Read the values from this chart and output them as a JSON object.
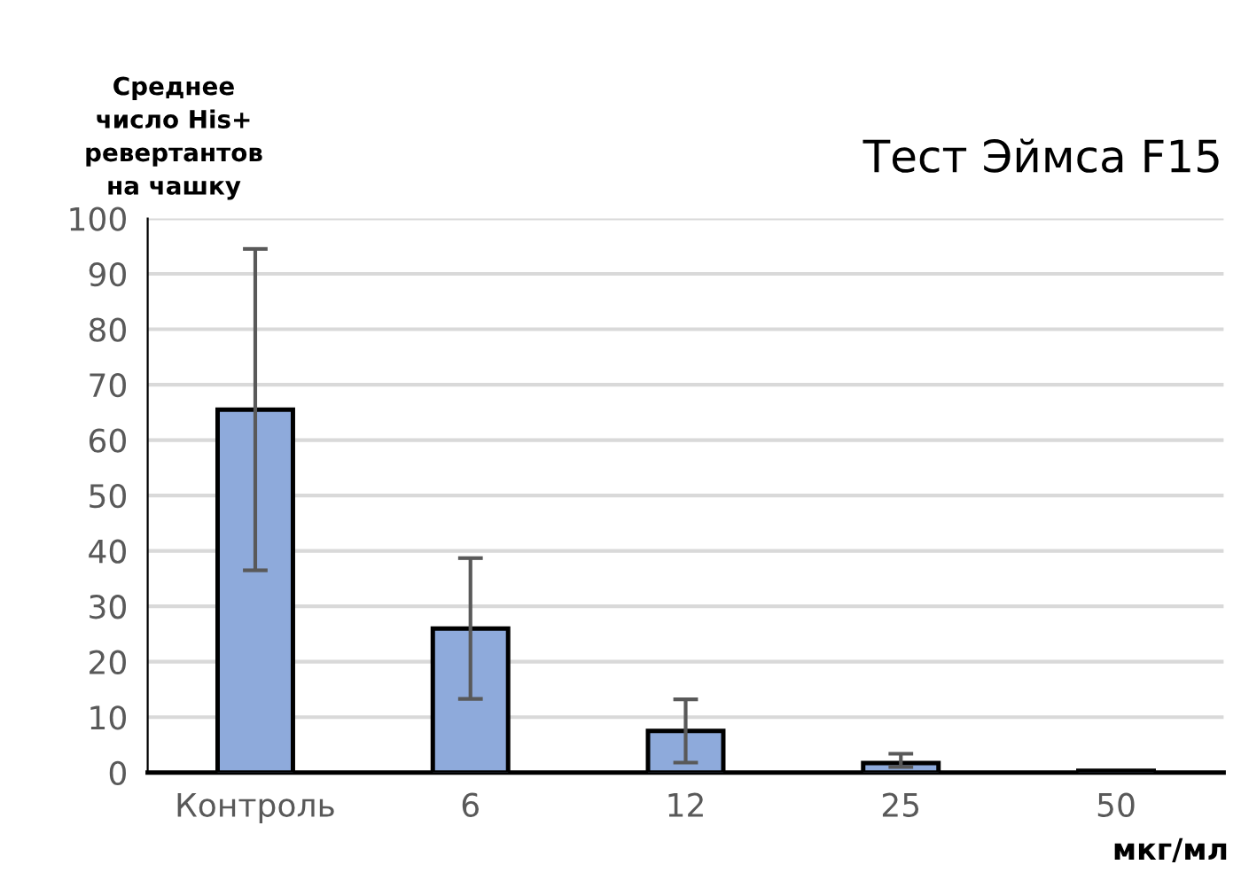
{
  "chart_data": {
    "type": "bar",
    "title": "Тест Эймса F15",
    "ylabel": "Среднее\nчисло His+\nревертантов\nна чашку",
    "xlabel": "мкг/мл",
    "categories": [
      "Контроль",
      "6",
      "12",
      "25",
      "50"
    ],
    "values": [
      65.5,
      26,
      7.5,
      1.7,
      0.3
    ],
    "errors": [
      [
        36.5,
        94.5
      ],
      [
        13.3,
        38.7
      ],
      [
        1.8,
        13.2
      ],
      [
        1.0,
        3.4
      ],
      null
    ],
    "color": "#8eaadb",
    "ylim": [
      0,
      100
    ],
    "yticks": [
      0,
      10,
      20,
      30,
      40,
      50,
      60,
      70,
      80,
      90,
      100
    ],
    "grid": "y",
    "legend": false
  }
}
